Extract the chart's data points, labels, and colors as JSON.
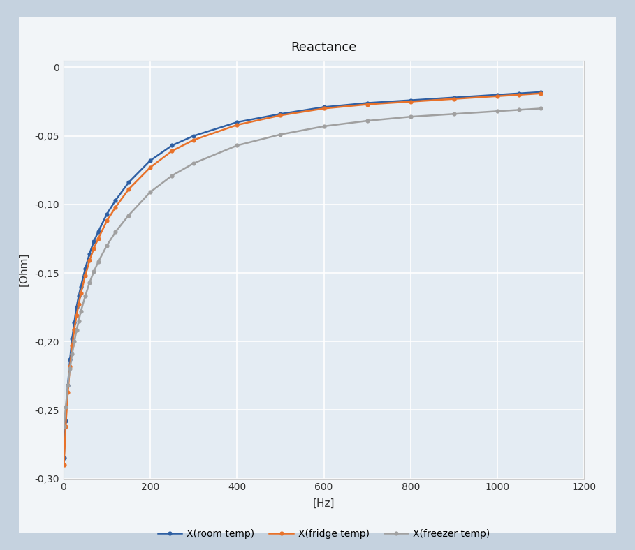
{
  "title": "Reactance",
  "xlabel": "[Hz]",
  "ylabel": "[Ohm]",
  "xlim": [
    0,
    1200
  ],
  "ylim": [
    -0.3,
    0.005
  ],
  "yticks": [
    0,
    -0.05,
    -0.1,
    -0.15,
    -0.2,
    -0.25,
    -0.3
  ],
  "xticks": [
    0,
    200,
    400,
    600,
    800,
    1000,
    1200
  ],
  "outer_bg": "#c8d4e0",
  "panel_bg": "#f0f4f8",
  "plot_bg": "#e8eef5",
  "series": [
    {
      "label": "X(room temp)",
      "color": "#2E5FA3",
      "marker": "o",
      "x": [
        1,
        5,
        10,
        15,
        20,
        25,
        30,
        35,
        40,
        50,
        60,
        70,
        80,
        100,
        120,
        150,
        200,
        250,
        300,
        400,
        500,
        600,
        700,
        800,
        900,
        1000,
        1050,
        1100
      ],
      "y": [
        -0.285,
        -0.258,
        -0.232,
        -0.213,
        -0.198,
        -0.186,
        -0.175,
        -0.167,
        -0.16,
        -0.147,
        -0.136,
        -0.127,
        -0.12,
        -0.107,
        -0.097,
        -0.084,
        -0.068,
        -0.057,
        -0.05,
        -0.04,
        -0.034,
        -0.029,
        -0.026,
        -0.024,
        -0.022,
        -0.02,
        -0.019,
        -0.018
      ]
    },
    {
      "label": "X(fridge temp)",
      "color": "#E8722A",
      "marker": "o",
      "x": [
        1,
        5,
        10,
        15,
        20,
        25,
        30,
        35,
        40,
        50,
        60,
        70,
        80,
        100,
        120,
        150,
        200,
        250,
        300,
        400,
        500,
        600,
        700,
        800,
        900,
        1000,
        1050,
        1100
      ],
      "y": [
        -0.29,
        -0.262,
        -0.237,
        -0.218,
        -0.203,
        -0.191,
        -0.181,
        -0.173,
        -0.165,
        -0.152,
        -0.141,
        -0.132,
        -0.125,
        -0.112,
        -0.102,
        -0.089,
        -0.073,
        -0.061,
        -0.053,
        -0.042,
        -0.035,
        -0.03,
        -0.027,
        -0.025,
        -0.023,
        -0.021,
        -0.02,
        -0.019
      ]
    },
    {
      "label": "X(freezer temp)",
      "color": "#A0A0A0",
      "marker": "o",
      "x": [
        1,
        5,
        10,
        15,
        20,
        25,
        30,
        35,
        40,
        50,
        60,
        70,
        80,
        100,
        120,
        150,
        200,
        250,
        300,
        400,
        500,
        600,
        700,
        800,
        900,
        1000,
        1050,
        1100
      ],
      "y": [
        -0.262,
        -0.248,
        -0.232,
        -0.22,
        -0.209,
        -0.2,
        -0.192,
        -0.185,
        -0.178,
        -0.167,
        -0.157,
        -0.149,
        -0.142,
        -0.13,
        -0.12,
        -0.108,
        -0.091,
        -0.079,
        -0.07,
        -0.057,
        -0.049,
        -0.043,
        -0.039,
        -0.036,
        -0.034,
        -0.032,
        -0.031,
        -0.03
      ]
    }
  ]
}
